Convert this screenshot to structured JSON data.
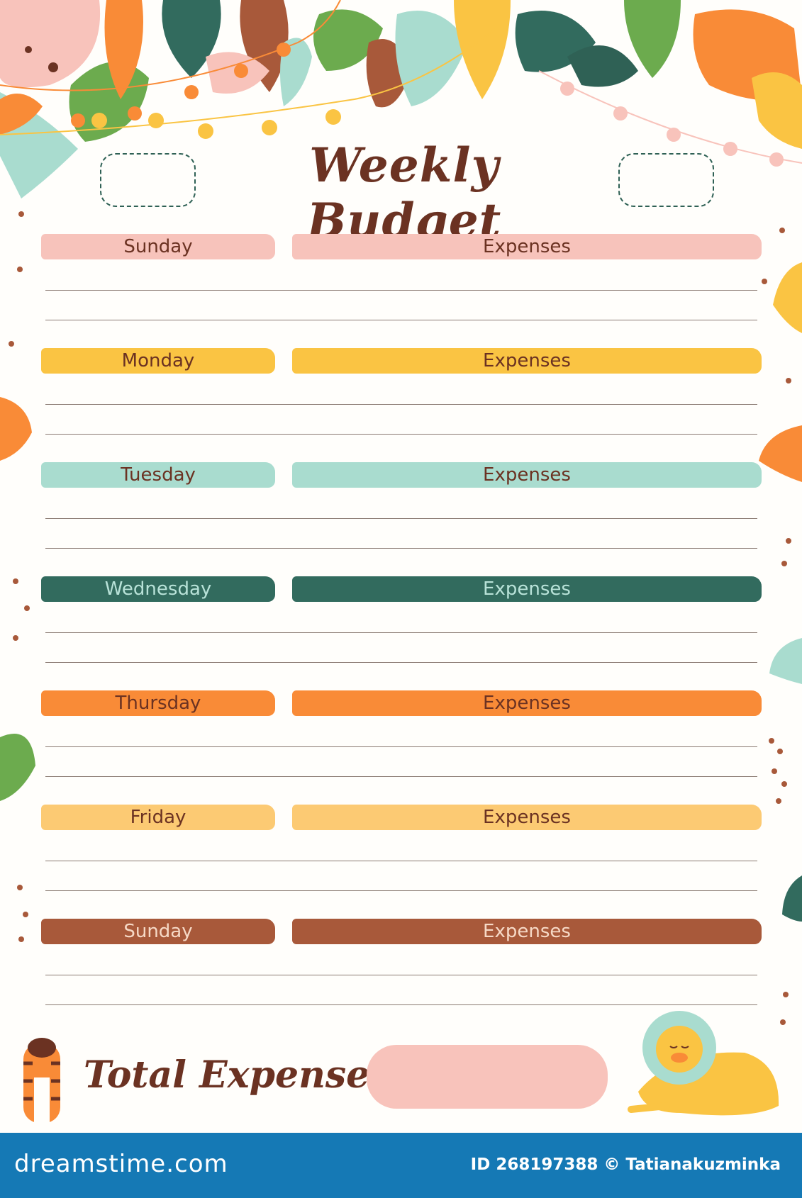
{
  "title": "Weekly Budget",
  "sections": [
    {
      "day": "Sunday",
      "expenses": "Expenses",
      "color": "#f7c3bb",
      "text": "#6b3222"
    },
    {
      "day": "Monday",
      "expenses": "Expenses",
      "color": "#fac443",
      "text": "#6b3222"
    },
    {
      "day": "Tuesday",
      "expenses": "Expenses",
      "color": "#a9dccf",
      "text": "#6b3222"
    },
    {
      "day": "Wednesday",
      "expenses": "Expenses",
      "color": "#326b5e",
      "text": "#b8e2d8"
    },
    {
      "day": "Thursday",
      "expenses": "Expenses",
      "color": "#f98b37",
      "text": "#6b3222"
    },
    {
      "day": "Friday",
      "expenses": "Expenses",
      "color": "#fcca73",
      "text": "#6b3222"
    },
    {
      "day": "Sunday",
      "expenses": "Expenses",
      "color": "#a8593a",
      "text": "#f6d9c6"
    }
  ],
  "total": {
    "label": "Total Expenses",
    "box_color": "#f8c3bb"
  },
  "footer": {
    "brand": "dreamstime.com",
    "credit": "ID 268197388 © Tatianakuzminka",
    "color": "#1579b5"
  },
  "decorations": {
    "top": "tropical-leaves-garland",
    "left": "tiger-illustration",
    "right": "lion-illustration"
  }
}
